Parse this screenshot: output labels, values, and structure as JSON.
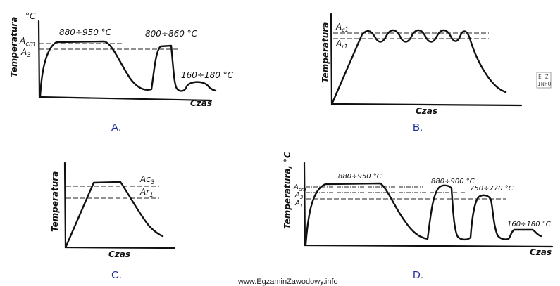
{
  "panels": {
    "a": {
      "caption": "A.",
      "unit": "°C",
      "ylabel": "Temperatura",
      "xlabel": "Czas",
      "level1": "A",
      "level1_sub": "cm",
      "level2": "A",
      "level2_sub": "3",
      "range1": "880÷950 °C",
      "range2": "800÷860 °C",
      "range3": "160÷180 °C"
    },
    "b": {
      "caption": "B.",
      "ylabel": "Temperatura",
      "xlabel": "Czas",
      "level1": "A",
      "level1_sub": "c1",
      "level2": "A",
      "level2_sub": "r1"
    },
    "c": {
      "caption": "C.",
      "ylabel": "Temperatura",
      "xlabel": "Czas",
      "level1": "Ac",
      "level1_sub": "3",
      "level2": "Ar",
      "level2_sub": "1"
    },
    "d": {
      "caption": "D.",
      "ylabel": "Temperatura, °C",
      "xlabel": "Czas",
      "level1": "A",
      "level1_sub": "cm",
      "level2": "A",
      "level2_sub": "3",
      "level3": "A",
      "level3_sub": "1",
      "range1": "880÷950 °C",
      "range2": "880÷900 °C",
      "range3": "750÷770 °C",
      "range4": "160÷180 °C"
    }
  },
  "watermark": {
    "line1": "E Z",
    "line2": "INFO"
  },
  "footer": "www.EgzaminZawodowy.info"
}
